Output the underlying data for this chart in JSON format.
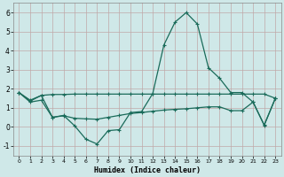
{
  "title": "",
  "xlabel": "Humidex (Indice chaleur)",
  "ylabel": "",
  "bg_color": "#cfe8e8",
  "grid_color": "#b0d0d0",
  "line_color": "#1a6b5a",
  "xlim": [
    -0.5,
    23.5
  ],
  "ylim": [
    -1.5,
    6.5
  ],
  "yticks": [
    -1,
    0,
    1,
    2,
    3,
    4,
    5,
    6
  ],
  "xticks": [
    0,
    1,
    2,
    3,
    4,
    5,
    6,
    7,
    8,
    9,
    10,
    11,
    12,
    13,
    14,
    15,
    16,
    17,
    18,
    19,
    20,
    21,
    22,
    23
  ],
  "line1_x": [
    0,
    1,
    2,
    3,
    4,
    5,
    6,
    7,
    8,
    9,
    10,
    11,
    12,
    13,
    14,
    15,
    16,
    17,
    18,
    19,
    20,
    21,
    22,
    23
  ],
  "line1_y": [
    1.8,
    1.4,
    1.65,
    0.5,
    0.6,
    0.05,
    -0.65,
    -0.9,
    -0.2,
    -0.15,
    0.75,
    0.8,
    1.75,
    4.3,
    5.5,
    6.0,
    5.4,
    3.1,
    2.55,
    1.8,
    1.8,
    1.3,
    0.1,
    1.5
  ],
  "line2_x": [
    0,
    1,
    2,
    3,
    4,
    5,
    6,
    7,
    8,
    9,
    10,
    11,
    12,
    13,
    14,
    15,
    16,
    17,
    18,
    19,
    20,
    21,
    22,
    23
  ],
  "line2_y": [
    1.8,
    1.35,
    1.65,
    1.7,
    1.7,
    1.72,
    1.72,
    1.72,
    1.72,
    1.72,
    1.72,
    1.72,
    1.72,
    1.72,
    1.72,
    1.72,
    1.72,
    1.72,
    1.72,
    1.72,
    1.72,
    1.72,
    1.72,
    1.5
  ],
  "line3_x": [
    0,
    1,
    2,
    3,
    4,
    5,
    6,
    7,
    8,
    9,
    10,
    11,
    12,
    13,
    14,
    15,
    16,
    17,
    18,
    19,
    20,
    21,
    22,
    23
  ],
  "line3_y": [
    1.8,
    1.3,
    1.4,
    0.5,
    0.58,
    0.45,
    0.42,
    0.4,
    0.5,
    0.6,
    0.7,
    0.75,
    0.82,
    0.88,
    0.92,
    0.95,
    1.0,
    1.05,
    1.05,
    0.85,
    0.85,
    1.3,
    0.08,
    1.5
  ]
}
